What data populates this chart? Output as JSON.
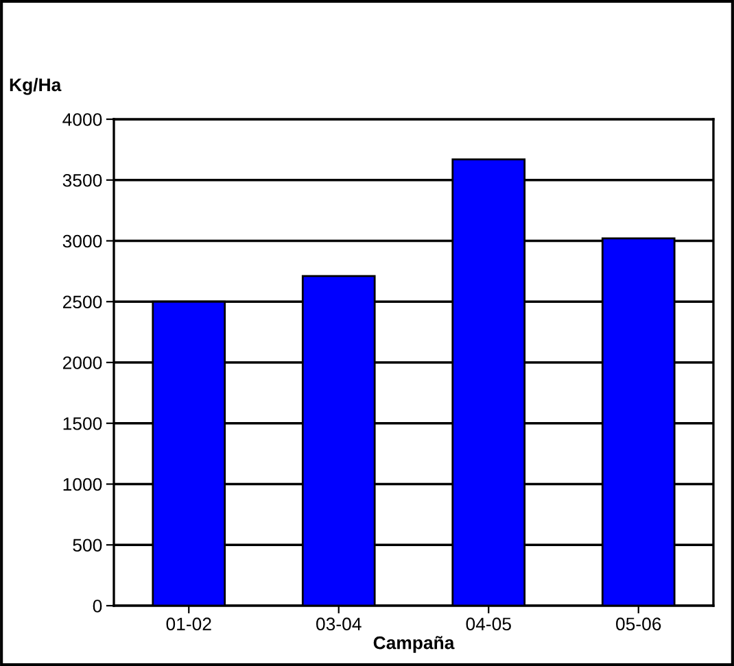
{
  "chart_data": {
    "type": "bar",
    "ylabel": "Kg/Ha",
    "xlabel": "Campaña",
    "categories": [
      "01-02",
      "03-04",
      "04-05",
      "05-06"
    ],
    "values": [
      2500,
      2710,
      3670,
      3020
    ],
    "color": "#0000ff",
    "ylim": [
      0,
      4000
    ],
    "yticks": [
      0,
      500,
      1000,
      1500,
      2000,
      2500,
      3000,
      3500,
      4000
    ],
    "grid": "y",
    "legend": false
  }
}
